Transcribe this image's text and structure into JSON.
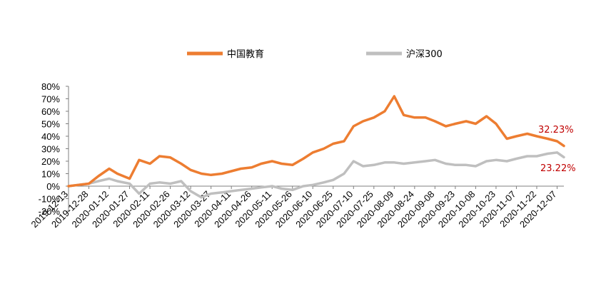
{
  "chart_data": {
    "type": "line",
    "title": "",
    "xlabel": "",
    "ylabel": "",
    "ylim": [
      -0.2,
      0.8
    ],
    "y_ticks": [
      "80%",
      "70%",
      "60%",
      "50%",
      "40%",
      "30%",
      "20%",
      "10%",
      "0%",
      "-10%",
      "-20%"
    ],
    "y_tick_values": [
      0.8,
      0.7,
      0.6,
      0.5,
      0.4,
      0.3,
      0.2,
      0.1,
      0.0,
      -0.1,
      -0.2
    ],
    "x_ticks": [
      "2019-12-13",
      "2019-12-28",
      "2020-01-12",
      "2020-01-27",
      "2020-02-11",
      "2020-02-26",
      "2020-03-12",
      "2020-03-27",
      "2020-04-11",
      "2020-04-26",
      "2020-05-11",
      "2020-05-26",
      "2020-06-10",
      "2020-06-25",
      "2020-07-10",
      "2020-07-25",
      "2020-08-09",
      "2020-08-24",
      "2020-09-08",
      "2020-09-23",
      "2020-10-08",
      "2020-10-23",
      "2020-11-07",
      "2020-11-22",
      "2020-12-07"
    ],
    "grid": false,
    "legend_position": "top",
    "series": [
      {
        "name": "中国教育",
        "color": "#ED7D31",
        "x": [
          "2019-12-13",
          "2019-12-20",
          "2019-12-28",
          "2020-01-04",
          "2020-01-12",
          "2020-01-18",
          "2020-01-27",
          "2020-02-03",
          "2020-02-11",
          "2020-02-18",
          "2020-02-26",
          "2020-03-05",
          "2020-03-12",
          "2020-03-20",
          "2020-03-27",
          "2020-04-04",
          "2020-04-11",
          "2020-04-18",
          "2020-04-26",
          "2020-05-03",
          "2020-05-11",
          "2020-05-18",
          "2020-05-26",
          "2020-06-03",
          "2020-06-10",
          "2020-06-18",
          "2020-06-25",
          "2020-07-03",
          "2020-07-10",
          "2020-07-17",
          "2020-07-25",
          "2020-08-02",
          "2020-08-09",
          "2020-08-16",
          "2020-08-24",
          "2020-09-01",
          "2020-09-08",
          "2020-09-16",
          "2020-09-23",
          "2020-10-01",
          "2020-10-08",
          "2020-10-16",
          "2020-10-23",
          "2020-10-31",
          "2020-11-07",
          "2020-11-15",
          "2020-11-22",
          "2020-11-30",
          "2020-12-07",
          "2020-12-12"
        ],
        "values": [
          0.0,
          0.01,
          0.02,
          0.08,
          0.14,
          0.1,
          0.06,
          0.21,
          0.18,
          0.24,
          0.23,
          0.18,
          0.13,
          0.1,
          0.09,
          0.1,
          0.12,
          0.14,
          0.15,
          0.18,
          0.2,
          0.18,
          0.17,
          0.22,
          0.27,
          0.3,
          0.34,
          0.36,
          0.48,
          0.52,
          0.55,
          0.6,
          0.72,
          0.57,
          0.55,
          0.55,
          0.52,
          0.48,
          0.5,
          0.52,
          0.5,
          0.56,
          0.5,
          0.38,
          0.4,
          0.42,
          0.4,
          0.38,
          0.36,
          0.3223
        ],
        "end_label": "32.23%"
      },
      {
        "name": "沪深300",
        "color": "#BFBFBF",
        "x": [
          "2019-12-13",
          "2019-12-20",
          "2019-12-28",
          "2020-01-04",
          "2020-01-12",
          "2020-01-18",
          "2020-01-27",
          "2020-02-03",
          "2020-02-11",
          "2020-02-18",
          "2020-02-26",
          "2020-03-05",
          "2020-03-12",
          "2020-03-20",
          "2020-03-27",
          "2020-04-04",
          "2020-04-11",
          "2020-04-18",
          "2020-04-26",
          "2020-05-03",
          "2020-05-11",
          "2020-05-18",
          "2020-05-26",
          "2020-06-03",
          "2020-06-10",
          "2020-06-18",
          "2020-06-25",
          "2020-07-03",
          "2020-07-10",
          "2020-07-17",
          "2020-07-25",
          "2020-08-02",
          "2020-08-09",
          "2020-08-16",
          "2020-08-24",
          "2020-09-01",
          "2020-09-08",
          "2020-09-16",
          "2020-09-23",
          "2020-10-01",
          "2020-10-08",
          "2020-10-16",
          "2020-10-23",
          "2020-10-31",
          "2020-11-07",
          "2020-11-15",
          "2020-11-22",
          "2020-11-30",
          "2020-12-07",
          "2020-12-12"
        ],
        "values": [
          0.0,
          0.01,
          0.02,
          0.04,
          0.06,
          0.04,
          0.02,
          -0.06,
          0.02,
          0.03,
          0.02,
          0.04,
          -0.04,
          -0.09,
          -0.06,
          -0.05,
          -0.04,
          -0.03,
          -0.02,
          -0.01,
          0.0,
          -0.02,
          -0.03,
          0.0,
          0.01,
          0.03,
          0.05,
          0.1,
          0.2,
          0.16,
          0.17,
          0.19,
          0.19,
          0.18,
          0.19,
          0.2,
          0.21,
          0.18,
          0.17,
          0.17,
          0.16,
          0.2,
          0.21,
          0.2,
          0.22,
          0.24,
          0.24,
          0.26,
          0.27,
          0.2322
        ],
        "end_label": "23.22%"
      }
    ],
    "end_label_color": "#C00000"
  }
}
